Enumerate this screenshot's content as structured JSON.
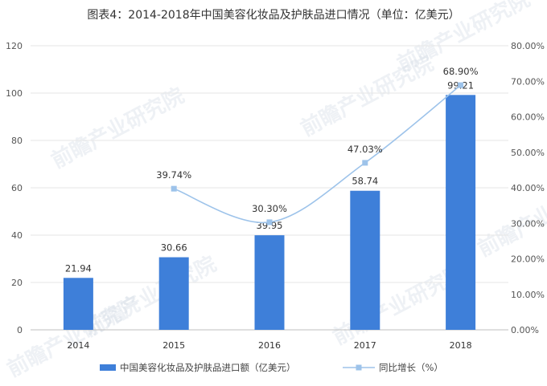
{
  "chart_data": {
    "type": "bar",
    "title": "图表4：2014-2018年中国美容化妆品及护肤品进口情况（单位：亿美元）",
    "categories": [
      "2014",
      "2015",
      "2016",
      "2017",
      "2018"
    ],
    "series": [
      {
        "name": "中国美容化妆品及护肤品进口额（亿美元）",
        "type": "bar",
        "axis": "left",
        "values": [
          21.94,
          30.66,
          39.95,
          58.74,
          99.21
        ],
        "labels": [
          "21.94",
          "30.66",
          "39.95",
          "58.74",
          "99.21"
        ],
        "color": "#3e7fd9"
      },
      {
        "name": "同比增长（%）",
        "type": "line",
        "axis": "right",
        "values": [
          null,
          39.74,
          30.3,
          47.03,
          68.9
        ],
        "labels": [
          "",
          "39.74%",
          "30.30%",
          "47.03%",
          "68.90%"
        ],
        "color": "#9dc3ea"
      }
    ],
    "ylim_left": [
      0,
      120
    ],
    "yticks_left": [
      "0",
      "20",
      "40",
      "60",
      "80",
      "100",
      "120"
    ],
    "ylim_right": [
      0,
      80
    ],
    "yticks_right": [
      "0.00%",
      "10.00%",
      "20.00%",
      "30.00%",
      "40.00%",
      "50.00%",
      "60.00%",
      "70.00%",
      "80.00%"
    ],
    "grid": true,
    "legend": "bottom"
  },
  "watermark": "前瞻产业研究院"
}
